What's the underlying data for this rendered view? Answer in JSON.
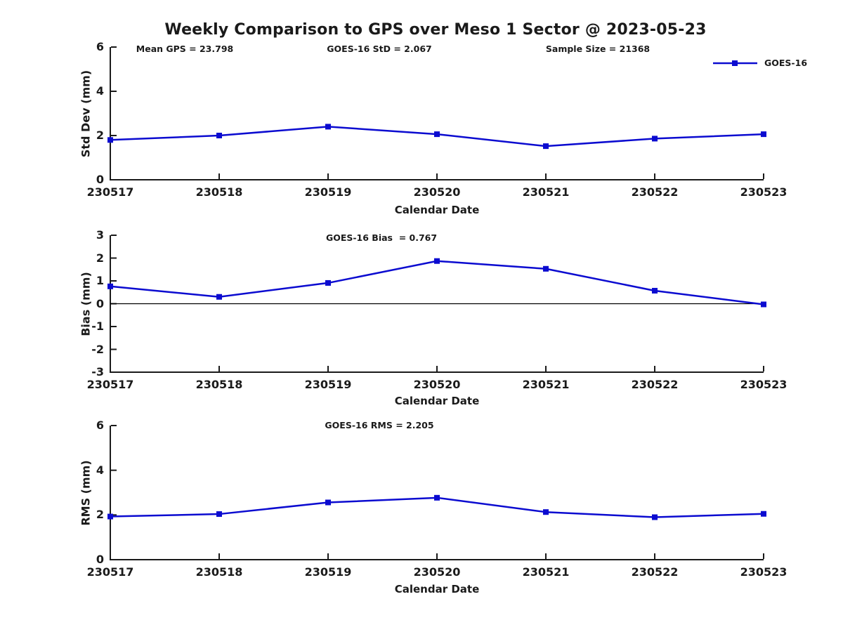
{
  "figure": {
    "title": "Weekly Comparison to GPS over Meso 1 Sector @ 2023-05-23",
    "background_color": "#ffffff",
    "axis_color": "#1a1a1a",
    "series_color": "#0b0bd0"
  },
  "legend": {
    "label": "GOES-16",
    "position": "top-right",
    "marker": "square"
  },
  "chart_data": [
    {
      "type": "line",
      "ylabel": "Std Dev (mm)",
      "xlabel": "Calendar Date",
      "annotations": [
        "Mean GPS = 23.798",
        "GOES-16 StD = 2.067",
        "Sample Size = 21368"
      ],
      "categories": [
        "230517",
        "230518",
        "230519",
        "230520",
        "230521",
        "230522",
        "230523"
      ],
      "series": [
        {
          "name": "GOES-16",
          "values": [
            1.8,
            2.0,
            2.4,
            2.06,
            1.52,
            1.86,
            2.06
          ]
        }
      ],
      "ylim": [
        0,
        6
      ],
      "yticks": [
        0,
        2,
        4,
        6
      ],
      "grid": false,
      "zero_line": false
    },
    {
      "type": "line",
      "ylabel": "Bias (mm)",
      "xlabel": "Calendar Date",
      "annotations": [
        "GOES-16 Bias  = 0.767"
      ],
      "categories": [
        "230517",
        "230518",
        "230519",
        "230520",
        "230521",
        "230522",
        "230523"
      ],
      "series": [
        {
          "name": "GOES-16",
          "values": [
            0.76,
            0.3,
            0.91,
            1.87,
            1.53,
            0.57,
            -0.03
          ]
        }
      ],
      "ylim": [
        -3,
        3
      ],
      "yticks": [
        -3,
        -2,
        -1,
        0,
        1,
        2,
        3
      ],
      "grid": false,
      "zero_line": true
    },
    {
      "type": "line",
      "ylabel": "RMS (mm)",
      "xlabel": "Calendar Date",
      "annotations": [
        "GOES-16 RMS = 2.205"
      ],
      "categories": [
        "230517",
        "230518",
        "230519",
        "230520",
        "230521",
        "230522",
        "230523"
      ],
      "series": [
        {
          "name": "GOES-16",
          "values": [
            1.93,
            2.04,
            2.56,
            2.77,
            2.13,
            1.9,
            2.05
          ]
        }
      ],
      "ylim": [
        0,
        6
      ],
      "yticks": [
        0,
        2,
        4,
        6
      ],
      "grid": false,
      "zero_line": false
    }
  ]
}
